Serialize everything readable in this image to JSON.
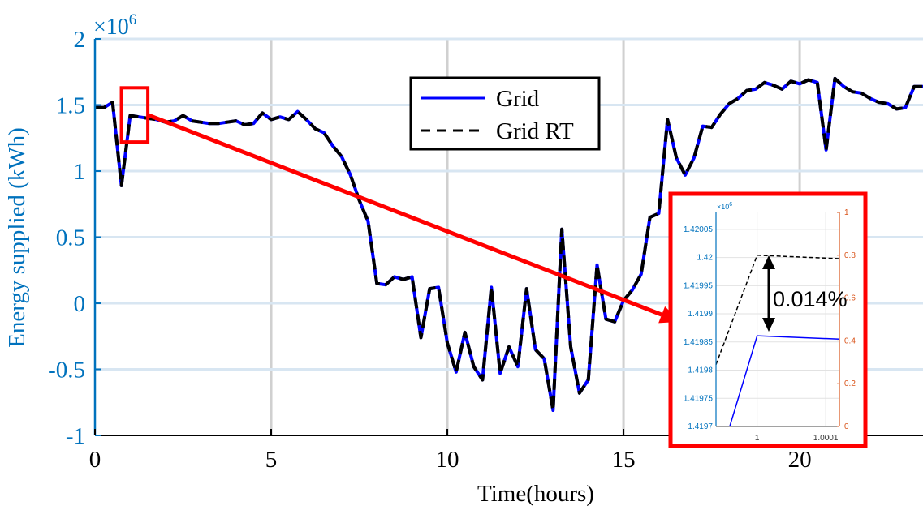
{
  "chart_data": {
    "type": "line",
    "xlabel": "Time(hours)",
    "ylabel": "Energy supplied (kWh)",
    "y_exponent_label": "×10",
    "y_exponent_power": "6",
    "xlim": [
      0,
      23.5
    ],
    "ylim": [
      -1,
      2
    ],
    "x_ticks": [
      "0",
      "5",
      "10",
      "15",
      "20"
    ],
    "x_tick_values": [
      0,
      5,
      10,
      15,
      20
    ],
    "y_ticks": [
      "2",
      "1.5",
      "1",
      "0.5",
      "0",
      "-0.5",
      "-1"
    ],
    "y_tick_values": [
      2,
      1.5,
      1,
      0.5,
      0,
      -0.5,
      -1
    ],
    "grid": true,
    "legend_position": "top-center",
    "series": [
      {
        "name": "Grid",
        "color": "#0000ff",
        "style": "solid",
        "x": [
          0,
          0.25,
          0.5,
          0.75,
          1,
          1.25,
          1.5,
          1.75,
          2,
          2.25,
          2.5,
          2.75,
          3,
          3.25,
          3.5,
          3.75,
          4,
          4.25,
          4.5,
          4.75,
          5,
          5.25,
          5.5,
          5.75,
          6,
          6.25,
          6.5,
          6.75,
          7,
          7.25,
          7.5,
          7.75,
          8,
          8.25,
          8.5,
          8.75,
          9,
          9.25,
          9.5,
          9.75,
          10,
          10.25,
          10.5,
          10.75,
          11,
          11.25,
          11.5,
          11.75,
          12,
          12.25,
          12.5,
          12.75,
          13,
          13.25,
          13.5,
          13.75,
          14,
          14.25,
          14.5,
          14.75,
          15,
          15.25,
          15.5,
          15.75,
          16,
          16.25,
          16.5,
          16.75,
          17,
          17.25,
          17.5,
          17.75,
          18,
          18.25,
          18.5,
          18.75,
          19,
          19.25,
          19.5,
          19.75,
          20,
          20.25,
          20.5,
          20.75,
          21,
          21.25,
          21.5,
          21.75,
          22,
          22.25,
          22.5,
          22.75,
          23,
          23.25,
          23.5
        ],
        "values": [
          1.48,
          1.48,
          1.52,
          0.89,
          1.42,
          1.41,
          1.4,
          1.39,
          1.37,
          1.38,
          1.42,
          1.38,
          1.37,
          1.36,
          1.36,
          1.37,
          1.38,
          1.35,
          1.36,
          1.44,
          1.39,
          1.41,
          1.39,
          1.45,
          1.39,
          1.32,
          1.29,
          1.19,
          1.11,
          0.97,
          0.78,
          0.62,
          0.15,
          0.14,
          0.2,
          0.18,
          0.2,
          -0.26,
          0.11,
          0.12,
          -0.3,
          -0.52,
          -0.22,
          -0.48,
          -0.58,
          0.12,
          -0.53,
          -0.33,
          -0.48,
          0.11,
          -0.35,
          -0.42,
          -0.81,
          0.56,
          -0.33,
          -0.68,
          -0.58,
          0.29,
          -0.12,
          -0.14,
          0.02,
          0.1,
          0.22,
          0.65,
          0.68,
          1.39,
          1.1,
          0.97,
          1.1,
          1.34,
          1.33,
          1.43,
          1.51,
          1.55,
          1.61,
          1.62,
          1.67,
          1.65,
          1.62,
          1.68,
          1.66,
          1.69,
          1.67,
          1.16,
          1.7,
          1.64,
          1.6,
          1.59,
          1.55,
          1.52,
          1.51,
          1.47,
          1.48,
          1.64,
          1.64
        ]
      },
      {
        "name": "Grid RT",
        "color": "#000000",
        "style": "dashed",
        "x": [
          0,
          0.25,
          0.5,
          0.75,
          1,
          1.25,
          1.5,
          1.75,
          2,
          2.25,
          2.5,
          2.75,
          3,
          3.25,
          3.5,
          3.75,
          4,
          4.25,
          4.5,
          4.75,
          5,
          5.25,
          5.5,
          5.75,
          6,
          6.25,
          6.5,
          6.75,
          7,
          7.25,
          7.5,
          7.75,
          8,
          8.25,
          8.5,
          8.75,
          9,
          9.25,
          9.5,
          9.75,
          10,
          10.25,
          10.5,
          10.75,
          11,
          11.25,
          11.5,
          11.75,
          12,
          12.25,
          12.5,
          12.75,
          13,
          13.25,
          13.5,
          13.75,
          14,
          14.25,
          14.5,
          14.75,
          15,
          15.25,
          15.5,
          15.75,
          16,
          16.25,
          16.5,
          16.75,
          17,
          17.25,
          17.5,
          17.75,
          18,
          18.25,
          18.5,
          18.75,
          19,
          19.25,
          19.5,
          19.75,
          20,
          20.25,
          20.5,
          20.75,
          21,
          21.25,
          21.5,
          21.75,
          22,
          22.25,
          22.5,
          22.75,
          23,
          23.25,
          23.5
        ],
        "values": [
          1.48,
          1.48,
          1.52,
          0.89,
          1.42,
          1.41,
          1.4,
          1.39,
          1.37,
          1.38,
          1.42,
          1.38,
          1.37,
          1.36,
          1.36,
          1.37,
          1.38,
          1.35,
          1.36,
          1.44,
          1.39,
          1.41,
          1.39,
          1.45,
          1.39,
          1.32,
          1.29,
          1.19,
          1.11,
          0.97,
          0.78,
          0.62,
          0.15,
          0.14,
          0.2,
          0.18,
          0.2,
          -0.26,
          0.11,
          0.12,
          -0.3,
          -0.52,
          -0.22,
          -0.48,
          -0.58,
          0.12,
          -0.53,
          -0.33,
          -0.48,
          0.11,
          -0.35,
          -0.42,
          -0.81,
          0.56,
          -0.33,
          -0.68,
          -0.58,
          0.29,
          -0.12,
          -0.14,
          0.02,
          0.1,
          0.22,
          0.65,
          0.68,
          1.39,
          1.1,
          0.97,
          1.1,
          1.34,
          1.33,
          1.43,
          1.51,
          1.55,
          1.61,
          1.62,
          1.67,
          1.65,
          1.62,
          1.68,
          1.66,
          1.69,
          1.67,
          1.16,
          1.7,
          1.64,
          1.6,
          1.59,
          1.55,
          1.52,
          1.51,
          1.47,
          1.48,
          1.64,
          1.64
        ]
      }
    ],
    "highlight_box": {
      "x": [
        0.75,
        1.5
      ],
      "y": [
        1.22,
        1.63
      ]
    },
    "arrow_target": {
      "x": 16.6,
      "y": -0.14
    },
    "inset": {
      "type": "line",
      "y_exponent_label": "×10",
      "y_exponent_power": "6",
      "xlim": [
        0.99994,
        1.00012
      ],
      "ylim_left": [
        1.4197,
        1.42008
      ],
      "ylim_right": [
        0,
        1
      ],
      "x_ticks": [
        "1",
        "1.0001"
      ],
      "x_tick_values": [
        1,
        1.0001
      ],
      "y_ticks_left": [
        "1.42005",
        "1.42",
        "1.41995",
        "1.4199",
        "1.41985",
        "1.4198",
        "1.41975",
        "1.4197"
      ],
      "y_tick_values_left": [
        1.42005,
        1.42,
        1.41995,
        1.4199,
        1.41985,
        1.4198,
        1.41975,
        1.4197
      ],
      "y_ticks_right": [
        "1",
        "0.8",
        "0.6",
        "0.4",
        "0.2",
        "0"
      ],
      "y_tick_values_right": [
        1,
        0.8,
        0.6,
        0.4,
        0.2,
        0
      ],
      "left_axis_color": "#0072bd",
      "right_axis_color": "#d95319",
      "grid_solid_series": {
        "name": "Grid",
        "x": [
          0.99996,
          1.0,
          1.00012
        ],
        "values": [
          1.4197,
          1.419861,
          1.419855
        ]
      },
      "grid_rt_series": {
        "name": "Grid RT",
        "x": [
          0.99994,
          1.0,
          1.00012
        ],
        "values": [
          1.41981,
          1.420004,
          1.419998
        ]
      },
      "annotation": "0.014%"
    }
  },
  "colors": {
    "axis_blue": "#0072bd",
    "highlight_red": "#ff0000",
    "grid_gray": "#c0c0c0"
  }
}
